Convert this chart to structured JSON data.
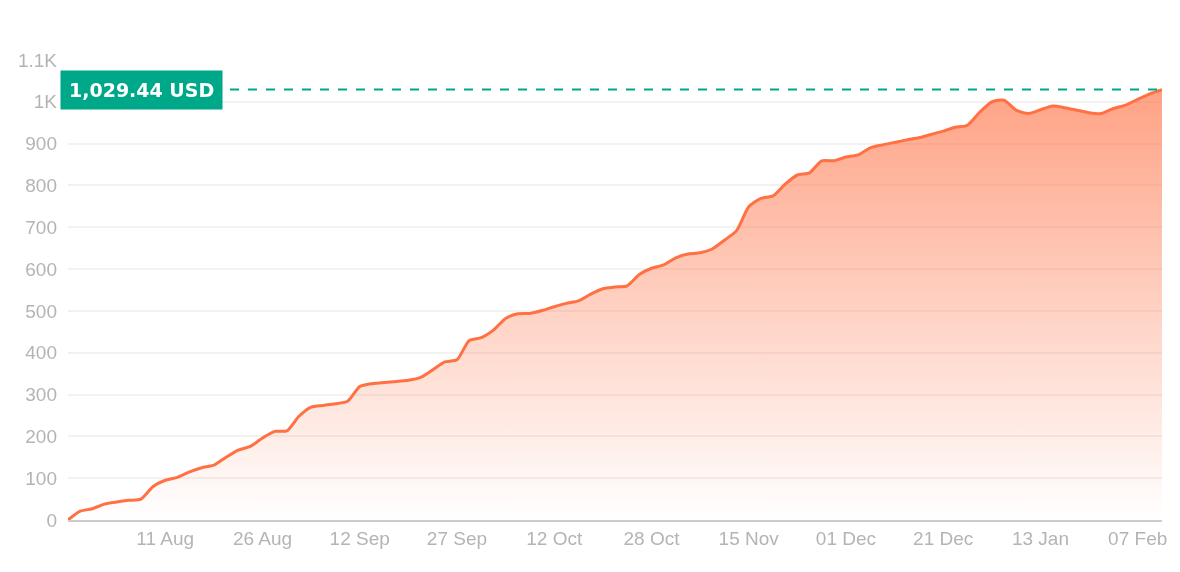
{
  "chart_data": {
    "type": "area",
    "categories": [
      null,
      null,
      null,
      null,
      null,
      null,
      null,
      null,
      "11 Aug",
      null,
      null,
      null,
      null,
      null,
      null,
      null,
      "26 Aug",
      null,
      null,
      null,
      null,
      null,
      null,
      null,
      "12 Sep",
      null,
      null,
      null,
      null,
      null,
      null,
      null,
      "27 Sep",
      null,
      null,
      null,
      null,
      null,
      null,
      null,
      "12 Oct",
      null,
      null,
      null,
      null,
      null,
      null,
      null,
      "28 Oct",
      null,
      null,
      null,
      null,
      null,
      null,
      null,
      "15 Nov",
      null,
      null,
      null,
      null,
      null,
      null,
      null,
      "01 Dec",
      null,
      null,
      null,
      null,
      null,
      null,
      null,
      "21 Dec",
      null,
      null,
      null,
      null,
      null,
      null,
      null,
      "13 Jan",
      null,
      null,
      null,
      null,
      null,
      null,
      null,
      "07 Feb",
      null,
      null
    ],
    "series": [
      {
        "color": "#ff7043",
        "values": [
          0,
          21,
          27,
          38,
          43,
          47,
          50,
          80,
          95,
          102,
          115,
          125,
          131,
          150,
          167,
          176,
          196,
          212,
          213,
          248,
          270,
          274,
          278,
          284,
          319,
          326,
          329,
          331,
          334,
          341,
          359,
          378,
          383,
          429,
          436,
          454,
          482,
          493,
          494,
          501,
          510,
          518,
          524,
          540,
          553,
          557,
          560,
          587,
          602,
          610,
          627,
          636,
          639,
          648,
          669,
          692,
          749,
          769,
          775,
          803,
          825,
          830,
          859,
          859,
          868,
          873,
          890,
          897,
          903,
          909,
          914,
          922,
          930,
          939,
          944,
          975,
          1000,
          1004,
          980,
          972,
          981,
          990,
          986,
          980,
          974,
          972,
          984,
          992,
          1006,
          1019,
          1029
        ]
      }
    ],
    "ylim": [
      0,
      1100
    ],
    "yticks": [
      0,
      100,
      200,
      300,
      400,
      500,
      600,
      700,
      800,
      900,
      {
        "value": 1000,
        "label": "1K"
      },
      {
        "value": 1100,
        "label": "1.1K"
      }
    ],
    "grid": "y",
    "line_style": "solid",
    "ref_lines": [
      {
        "axis": "y",
        "value": 1029.44,
        "label": "1,029.44 USD",
        "color": "#00a88a",
        "line_style": "dashed"
      }
    ]
  }
}
